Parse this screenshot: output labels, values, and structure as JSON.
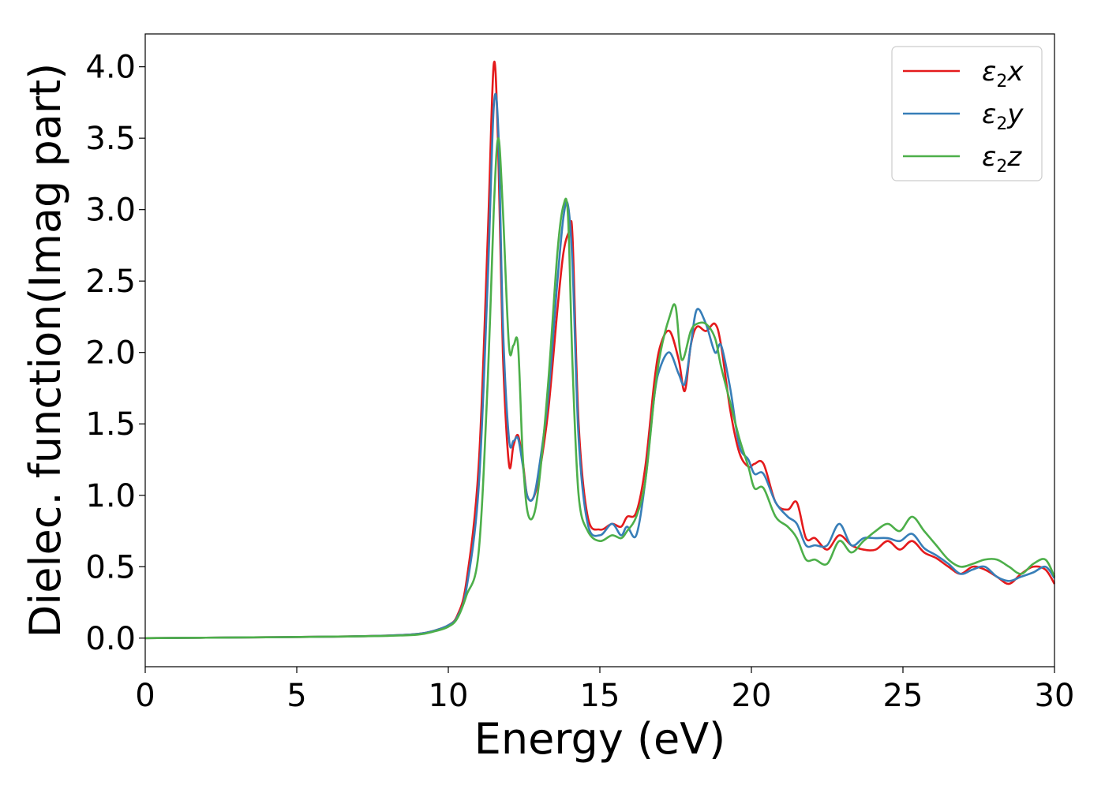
{
  "chart_data": {
    "type": "line",
    "title": "",
    "xlabel": "Energy (eV)",
    "ylabel": "Dielec. function(Imag part)",
    "xlim": [
      0,
      30
    ],
    "ylim": [
      -0.2,
      4.23
    ],
    "xticks": [
      0,
      5,
      10,
      15,
      20,
      25,
      30
    ],
    "xtick_labels": [
      "0",
      "5",
      "10",
      "15",
      "20",
      "25",
      "30"
    ],
    "yticks": [
      0.0,
      0.5,
      1.0,
      1.5,
      2.0,
      2.5,
      3.0,
      3.5,
      4.0
    ],
    "ytick_labels": [
      "0.0",
      "0.5",
      "1.0",
      "1.5",
      "2.0",
      "2.5",
      "3.0",
      "3.5",
      "4.0"
    ],
    "grid": false,
    "legend_position": "top-right",
    "series": [
      {
        "name": "ε2x",
        "legend_main": "ε",
        "legend_sub": "2",
        "legend_var": "x",
        "color": "#e41a1c",
        "x": [
          0,
          2,
          4,
          6,
          8,
          9,
          9.5,
          10,
          10.3,
          10.6,
          11,
          11.3,
          11.5,
          11.65,
          11.8,
          12.0,
          12.15,
          12.3,
          12.45,
          12.6,
          12.8,
          13.0,
          13.3,
          13.6,
          13.8,
          14.0,
          14.1,
          14.3,
          14.6,
          15.0,
          15.4,
          15.7,
          15.9,
          16.2,
          16.5,
          16.8,
          17.0,
          17.3,
          17.6,
          17.8,
          18.0,
          18.2,
          18.5,
          18.8,
          19.0,
          19.3,
          19.6,
          19.9,
          20.1,
          20.4,
          20.8,
          21.2,
          21.5,
          21.8,
          22.1,
          22.5,
          22.9,
          23.3,
          23.7,
          24.1,
          24.5,
          24.9,
          25.3,
          25.7,
          26.1,
          26.5,
          26.9,
          27.3,
          27.7,
          28.1,
          28.5,
          28.9,
          29.3,
          29.7,
          30.0
        ],
        "values": [
          0.0,
          0.003,
          0.006,
          0.01,
          0.018,
          0.03,
          0.05,
          0.09,
          0.16,
          0.4,
          1.2,
          2.8,
          4.02,
          3.4,
          2.0,
          1.22,
          1.35,
          1.42,
          1.25,
          1.0,
          0.98,
          1.15,
          1.6,
          2.3,
          2.7,
          2.85,
          2.8,
          1.5,
          0.85,
          0.76,
          0.8,
          0.78,
          0.85,
          0.88,
          1.2,
          1.8,
          2.05,
          2.15,
          1.95,
          1.73,
          2.05,
          2.18,
          2.15,
          2.2,
          2.05,
          1.6,
          1.3,
          1.2,
          1.22,
          1.22,
          0.95,
          0.9,
          0.95,
          0.7,
          0.7,
          0.62,
          0.72,
          0.65,
          0.62,
          0.62,
          0.68,
          0.62,
          0.68,
          0.6,
          0.56,
          0.5,
          0.45,
          0.5,
          0.48,
          0.43,
          0.38,
          0.45,
          0.5,
          0.48,
          0.38
        ]
      },
      {
        "name": "ε2y",
        "legend_main": "ε",
        "legend_sub": "2",
        "legend_var": "y",
        "color": "#377eb8",
        "x": [
          0,
          2,
          4,
          6,
          8,
          9,
          9.5,
          10,
          10.3,
          10.6,
          11,
          11.3,
          11.5,
          11.65,
          11.8,
          12.0,
          12.15,
          12.3,
          12.45,
          12.6,
          12.8,
          13.0,
          13.3,
          13.6,
          13.8,
          13.95,
          14.1,
          14.3,
          14.6,
          15.0,
          15.4,
          15.7,
          15.9,
          16.2,
          16.5,
          16.8,
          17.0,
          17.3,
          17.6,
          17.8,
          18.0,
          18.2,
          18.5,
          18.8,
          19.0,
          19.3,
          19.6,
          19.9,
          20.1,
          20.4,
          20.8,
          21.2,
          21.5,
          21.8,
          22.1,
          22.5,
          22.9,
          23.3,
          23.7,
          24.1,
          24.5,
          24.9,
          25.3,
          25.7,
          26.1,
          26.5,
          26.9,
          27.3,
          27.7,
          28.1,
          28.5,
          28.9,
          29.3,
          29.7,
          30.0
        ],
        "values": [
          0.0,
          0.003,
          0.006,
          0.01,
          0.018,
          0.03,
          0.05,
          0.09,
          0.15,
          0.35,
          1.05,
          2.5,
          3.72,
          3.55,
          2.2,
          1.4,
          1.38,
          1.4,
          1.22,
          1.0,
          0.98,
          1.2,
          1.7,
          2.5,
          2.95,
          3.03,
          2.6,
          1.4,
          0.8,
          0.72,
          0.8,
          0.72,
          0.78,
          0.72,
          1.1,
          1.7,
          1.9,
          2.0,
          1.85,
          1.78,
          2.05,
          2.3,
          2.2,
          2.0,
          2.05,
          1.75,
          1.35,
          1.25,
          1.15,
          1.15,
          0.95,
          0.85,
          0.8,
          0.65,
          0.65,
          0.65,
          0.8,
          0.65,
          0.7,
          0.7,
          0.7,
          0.68,
          0.73,
          0.63,
          0.58,
          0.52,
          0.45,
          0.48,
          0.5,
          0.43,
          0.4,
          0.43,
          0.46,
          0.5,
          0.42
        ]
      },
      {
        "name": "ε2z",
        "legend_main": "ε",
        "legend_sub": "2",
        "legend_var": "z",
        "color": "#4daf4a",
        "x": [
          0,
          2,
          4,
          6,
          8,
          9,
          9.5,
          10,
          10.3,
          10.6,
          11,
          11.3,
          11.5,
          11.65,
          11.8,
          12.0,
          12.15,
          12.3,
          12.45,
          12.6,
          12.8,
          13.0,
          13.3,
          13.6,
          13.8,
          13.95,
          14.1,
          14.3,
          14.6,
          15.0,
          15.4,
          15.7,
          15.9,
          16.2,
          16.5,
          16.8,
          17.0,
          17.3,
          17.5,
          17.7,
          18.0,
          18.2,
          18.5,
          18.8,
          19.0,
          19.3,
          19.6,
          19.9,
          20.1,
          20.4,
          20.8,
          21.2,
          21.5,
          21.8,
          22.1,
          22.5,
          22.9,
          23.3,
          23.7,
          24.1,
          24.5,
          24.9,
          25.3,
          25.7,
          26.1,
          26.5,
          26.9,
          27.3,
          27.7,
          28.1,
          28.5,
          28.9,
          29.3,
          29.7,
          30.0
        ],
        "values": [
          0.0,
          0.003,
          0.006,
          0.01,
          0.016,
          0.025,
          0.045,
          0.08,
          0.14,
          0.3,
          0.6,
          1.8,
          3.0,
          3.5,
          3.0,
          2.05,
          2.05,
          2.05,
          1.3,
          0.9,
          0.85,
          1.1,
          1.8,
          2.7,
          3.03,
          2.95,
          1.9,
          1.0,
          0.75,
          0.68,
          0.72,
          0.7,
          0.75,
          0.85,
          1.1,
          1.7,
          2.0,
          2.25,
          2.32,
          1.95,
          2.15,
          2.2,
          2.2,
          2.1,
          1.9,
          1.65,
          1.4,
          1.2,
          1.05,
          1.05,
          0.85,
          0.78,
          0.7,
          0.55,
          0.55,
          0.52,
          0.68,
          0.6,
          0.68,
          0.75,
          0.8,
          0.75,
          0.85,
          0.75,
          0.65,
          0.55,
          0.5,
          0.52,
          0.55,
          0.55,
          0.5,
          0.45,
          0.52,
          0.55,
          0.43
        ]
      }
    ]
  }
}
